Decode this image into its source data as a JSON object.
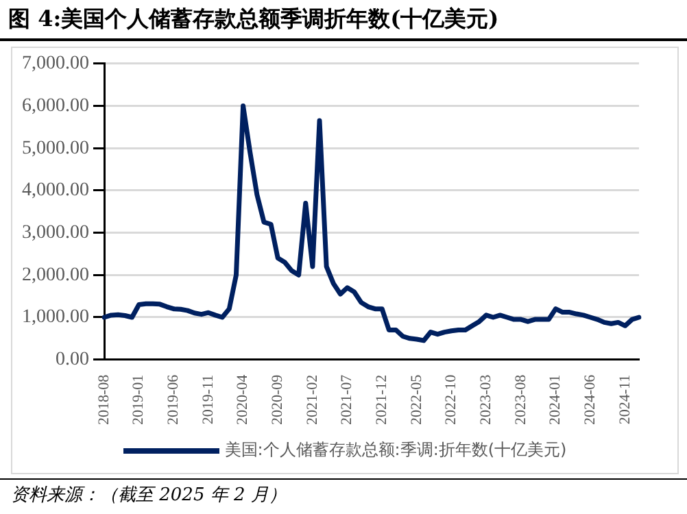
{
  "chart_data": {
    "type": "line",
    "title": "图 4:美国个人储蓄存款总额季调折年数(十亿美元)",
    "categories": [
      "2018-08",
      null,
      null,
      null,
      null,
      "2019-01",
      null,
      null,
      null,
      null,
      "2019-06",
      null,
      null,
      null,
      null,
      "2019-11",
      null,
      null,
      null,
      null,
      "2020-04",
      null,
      null,
      null,
      null,
      "2020-09",
      null,
      null,
      null,
      null,
      "2021-02",
      null,
      null,
      null,
      null,
      "2021-07",
      null,
      null,
      null,
      null,
      "2021-12",
      null,
      null,
      null,
      null,
      "2022-05",
      null,
      null,
      null,
      null,
      "2022-10",
      null,
      null,
      null,
      null,
      "2023-03",
      null,
      null,
      null,
      null,
      "2023-08",
      null,
      null,
      null,
      null,
      "2024-01",
      null,
      null,
      null,
      null,
      "2024-06",
      null,
      null,
      null,
      null,
      "2024-11",
      null,
      null
    ],
    "series": [
      {
        "name": "美国:个人储蓄存款总额:季调:折年数(十亿美元)",
        "color": "#002060",
        "values": [
          1000,
          1050,
          1060,
          1040,
          1000,
          1300,
          1320,
          1320,
          1310,
          1250,
          1200,
          1190,
          1160,
          1100,
          1070,
          1110,
          1050,
          1000,
          1200,
          2000,
          6000,
          4900,
          3900,
          3250,
          3200,
          2400,
          2300,
          2100,
          2000,
          3700,
          2200,
          5650,
          2200,
          1800,
          1550,
          1700,
          1600,
          1350,
          1250,
          1200,
          1200,
          700,
          700,
          550,
          500,
          480,
          450,
          650,
          600,
          650,
          680,
          700,
          700,
          800,
          900,
          1050,
          1000,
          1050,
          1000,
          950,
          950,
          900,
          950,
          950,
          950,
          1200,
          1120,
          1120,
          1080,
          1050,
          1000,
          950,
          880,
          850,
          880,
          800,
          950,
          1000
        ]
      }
    ],
    "ylim": [
      0,
      7000
    ],
    "yticks": [
      {
        "value": 0,
        "label": "0.00"
      },
      {
        "value": 1000,
        "label": "1,000.00"
      },
      {
        "value": 2000,
        "label": "2,000.00"
      },
      {
        "value": 3000,
        "label": "3,000.00"
      },
      {
        "value": 4000,
        "label": "4,000.00"
      },
      {
        "value": 5000,
        "label": "5,000.00"
      },
      {
        "value": 6000,
        "label": "6,000.00"
      },
      {
        "value": 7000,
        "label": "7,000.00"
      }
    ],
    "grid": "y",
    "legend": "bottom",
    "marker": "none",
    "line_style": "solid",
    "annotations": [
      "资料来源：（截至 2025 年 2 月）"
    ]
  }
}
